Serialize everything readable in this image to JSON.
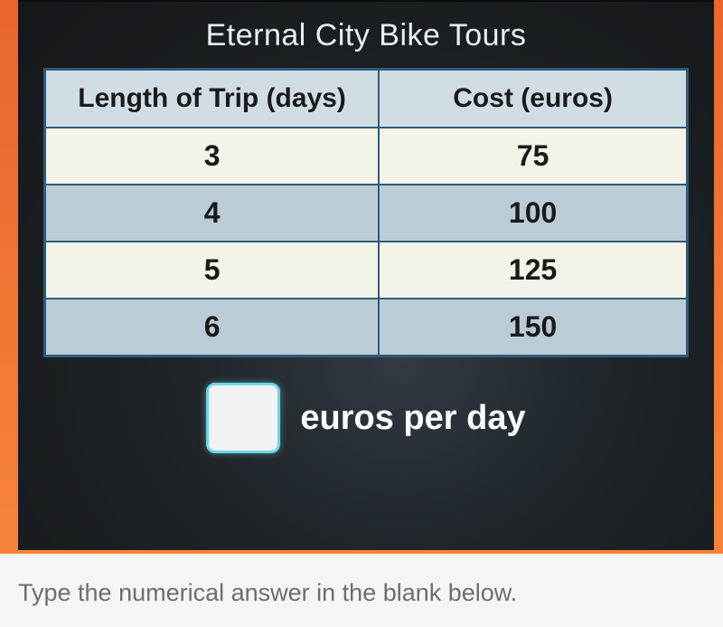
{
  "title": "Eternal City Bike Tours",
  "table": {
    "columns": [
      "Length of Trip (days)",
      "Cost (euros)"
    ],
    "rows": [
      [
        "3",
        "75"
      ],
      [
        "4",
        "100"
      ],
      [
        "5",
        "125"
      ],
      [
        "6",
        "150"
      ]
    ],
    "header_bg": "#d1dde4",
    "row_odd_bg": "#f4f3e7",
    "row_even_bg": "#bacdd6",
    "border_color": "#305a7a"
  },
  "answer": {
    "value": "",
    "unit_label": "euros per day",
    "box_border": "#6fd4e8",
    "box_bg": "#f0f3f4"
  },
  "prompt": "Type the numerical answer in the blank below.",
  "colors": {
    "chalkboard_bg": "#1a1d20",
    "frame_bg": "#f5843a",
    "title_color": "#e8f0f4",
    "label_color": "#ffffff",
    "prompt_color": "#6a6e73"
  }
}
